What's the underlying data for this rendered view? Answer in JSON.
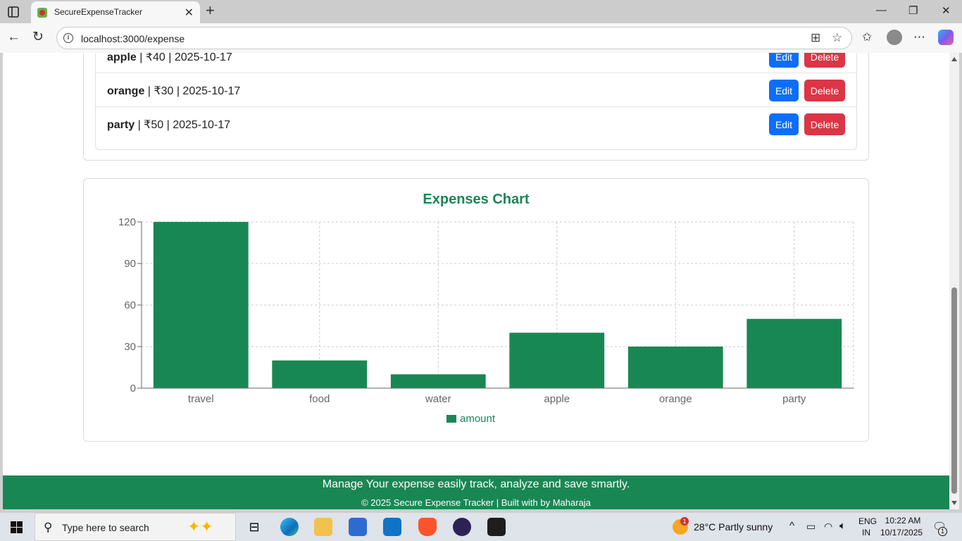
{
  "browser": {
    "tab_title": "SecureExpenseTracker",
    "url": "localhost:3000/expense"
  },
  "expenses": [
    {
      "name": "apple",
      "rest": " | ₹40 | 2025-10-17",
      "edit": "Edit",
      "delete": "Delete"
    },
    {
      "name": "orange",
      "rest": " | ₹30 | 2025-10-17",
      "edit": "Edit",
      "delete": "Delete"
    },
    {
      "name": "party",
      "rest": " | ₹50 | 2025-10-17",
      "edit": "Edit",
      "delete": "Delete"
    }
  ],
  "chart_data": {
    "type": "bar",
    "title": "Expenses Chart",
    "categories": [
      "travel",
      "food",
      "water",
      "apple",
      "orange",
      "party"
    ],
    "series": [
      {
        "name": "amount",
        "values": [
          120,
          20,
          10,
          40,
          30,
          50
        ],
        "color": "#198754"
      }
    ],
    "y_ticks": [
      "0",
      "30",
      "60",
      "90",
      "120"
    ],
    "ylim": [
      0,
      120
    ],
    "grid": true,
    "legend": "bottom"
  },
  "footer": {
    "line1": "Manage Your expense easily track, analyze and save smartly.",
    "line2": "© 2025 Secure Expense Tracker | Built with by Maharaja"
  },
  "taskbar": {
    "search_placeholder": "Type here to search",
    "weather": "28°C  Partly sunny",
    "weather_badge": "1",
    "lang1": "ENG",
    "lang2": "IN",
    "time": "10:22 AM",
    "date": "10/17/2025",
    "notif_count": "1"
  },
  "colors": {
    "accent": "#198754",
    "edit": "#0d6efd",
    "delete": "#dc3545"
  }
}
